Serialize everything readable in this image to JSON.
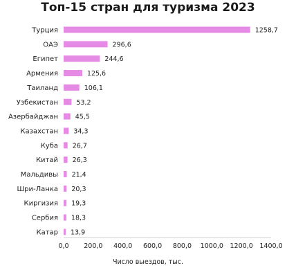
{
  "chart_data": {
    "type": "bar",
    "orientation": "horizontal",
    "title": "Топ-15 стран для туризма 2023",
    "xlabel": "Число выездов, тыс.",
    "ylabel": "",
    "categories": [
      "Турция",
      "ОАЭ",
      "Египет",
      "Армения",
      "Таиланд",
      "Узбекистан",
      "Азербайджан",
      "Казахстан",
      "Куба",
      "Китай",
      "Мальдивы",
      "Шри-Ланка",
      "Киргизия",
      "Сербия",
      "Катар"
    ],
    "values": [
      1258.7,
      296.6,
      244.6,
      125.6,
      106.1,
      53.2,
      45.5,
      34.3,
      26.7,
      26.3,
      21.4,
      20.3,
      19.3,
      18.3,
      13.9
    ],
    "value_labels": [
      "1258,7",
      "296,6",
      "244,6",
      "125,6",
      "106,1",
      "53,2",
      "45,5",
      "34,3",
      "26,7",
      "26,3",
      "21,4",
      "20,3",
      "19,3",
      "18,3",
      "13,9"
    ],
    "xlim": [
      0,
      1400
    ],
    "xticks": [
      0,
      200,
      400,
      600,
      800,
      1000,
      1200,
      1400
    ],
    "xtick_labels": [
      "0,0",
      "200,0",
      "400,0",
      "600,0",
      "800,0",
      "1000,0",
      "1200,0",
      "1400,0"
    ],
    "grid": false,
    "legend": "none",
    "bar_color": "#e58be6"
  }
}
